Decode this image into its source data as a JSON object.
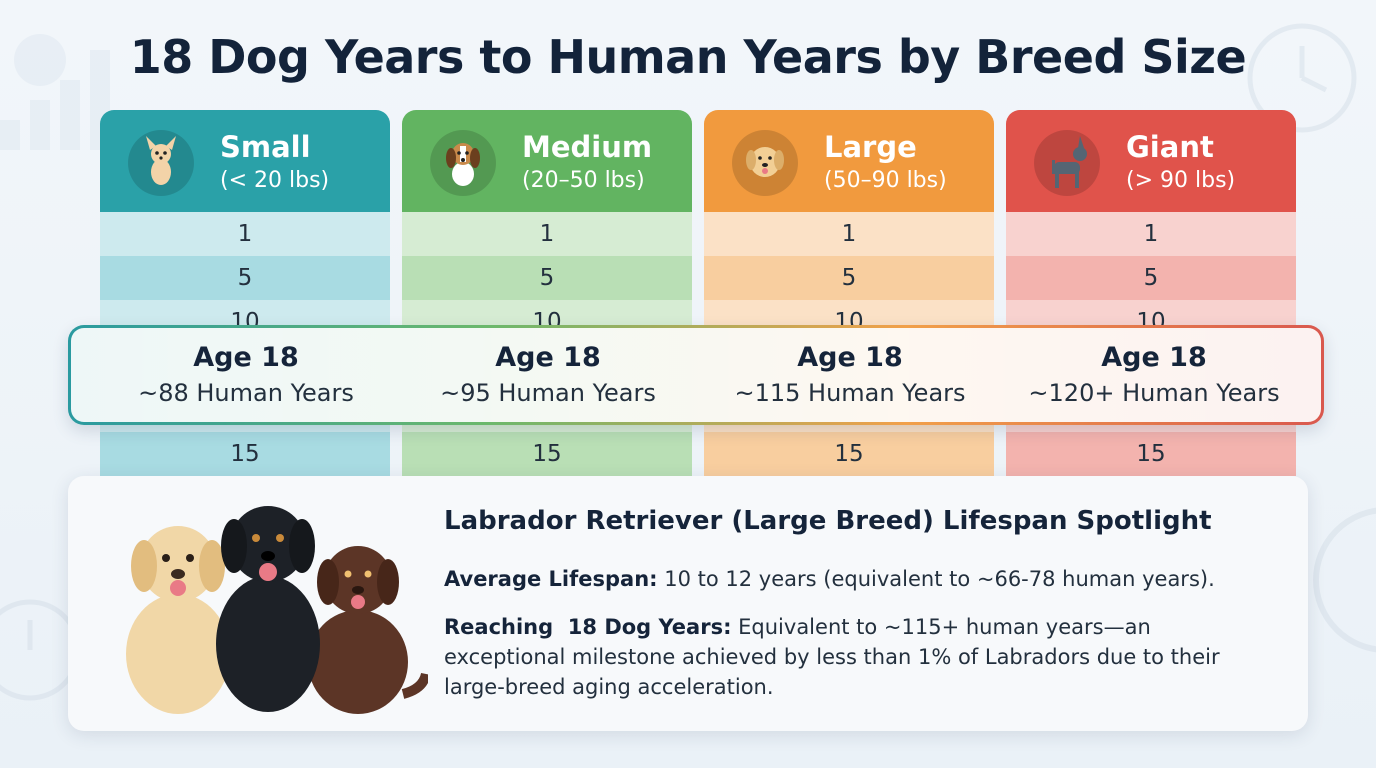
{
  "title": "18 Dog Years to Human Years by Breed Size",
  "columns": [
    {
      "name": "Small",
      "weight": "(< 20 lbs)",
      "head_color": "#2aa1a8",
      "row_light": "#cdeaee",
      "row_dark": "#a8dbe2",
      "icon": "chihuahua-icon",
      "ages": [
        "1",
        "5",
        "10",
        "15"
      ],
      "age_label": "Age 18",
      "human_years": "~88 Human Years"
    },
    {
      "name": "Medium",
      "weight": "(20–50 lbs)",
      "head_color": "#62b461",
      "row_light": "#d6ecd3",
      "row_dark": "#b9dfb5",
      "icon": "beagle-icon",
      "ages": [
        "1",
        "5",
        "10",
        "15"
      ],
      "age_label": "Age 18",
      "human_years": "~95 Human Years"
    },
    {
      "name": "Large",
      "weight": "(50–90 lbs)",
      "head_color": "#f19a3e",
      "row_light": "#fbe1c6",
      "row_dark": "#f8ce9f",
      "icon": "labrador-icon",
      "ages": [
        "1",
        "5",
        "10",
        "15"
      ],
      "age_label": "Age 18",
      "human_years": "~115 Human Years"
    },
    {
      "name": "Giant",
      "weight": "(> 90 lbs)",
      "head_color": "#e0534b",
      "row_light": "#f8d2cf",
      "row_dark": "#f3b3ae",
      "icon": "great-dane-icon",
      "ages": [
        "1",
        "5",
        "10",
        "15"
      ],
      "age_label": "Age 18",
      "human_years": "~120+ Human Years"
    }
  ],
  "spotlight": {
    "title": "Labrador Retriever (Large Breed) Lifespan Spotlight",
    "p1_label": "Average Lifespan:",
    "p1_text": " 10 to 12 years (equivalent to ~66-78 human years).",
    "p2_label": "Reaching  18 Dog Years:",
    "p2_text": " Equivalent to ~115+ human years—an exceptional milestone achieved by less than 1% of Labradors due to their large-breed aging acceleration.",
    "dogs_icon": "three-labradors-icon"
  }
}
